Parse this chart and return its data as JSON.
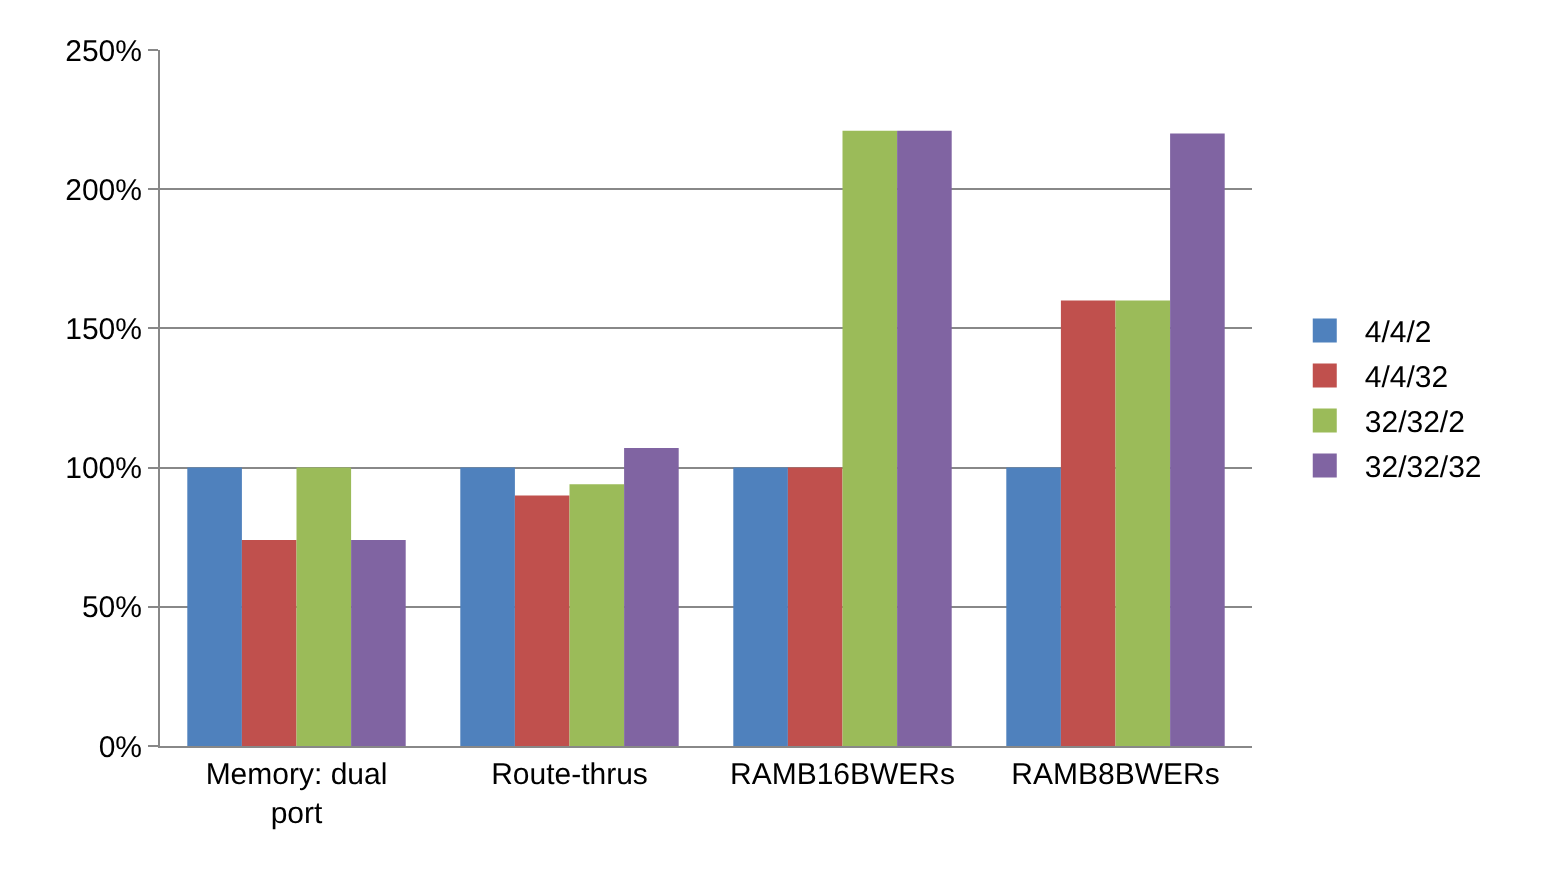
{
  "chart_data": {
    "type": "bar",
    "categories": [
      "Memory: dual port",
      "Route-thrus",
      "RAMB16BWERs",
      "RAMB8BWERs"
    ],
    "series": [
      {
        "name": "4/4/2",
        "color": "#4f81bd",
        "values": [
          100,
          100,
          100,
          100
        ]
      },
      {
        "name": "4/4/32",
        "color": "#c0504d",
        "values": [
          74,
          90,
          100,
          160
        ]
      },
      {
        "name": "32/32/2",
        "color": "#9bbb59",
        "values": [
          100,
          94,
          221,
          160
        ]
      },
      {
        "name": "32/32/32",
        "color": "#8064a2",
        "values": [
          74,
          107,
          221,
          220
        ]
      }
    ],
    "ylim": [
      0,
      250
    ],
    "yticks": [
      {
        "value": 0,
        "label": "0%"
      },
      {
        "value": 50,
        "label": "50%"
      },
      {
        "value": 100,
        "label": "100%"
      },
      {
        "value": 150,
        "label": "150%"
      },
      {
        "value": 200,
        "label": "200%"
      },
      {
        "value": 250,
        "label": "250%"
      }
    ],
    "grid": "y",
    "legend": "right"
  }
}
